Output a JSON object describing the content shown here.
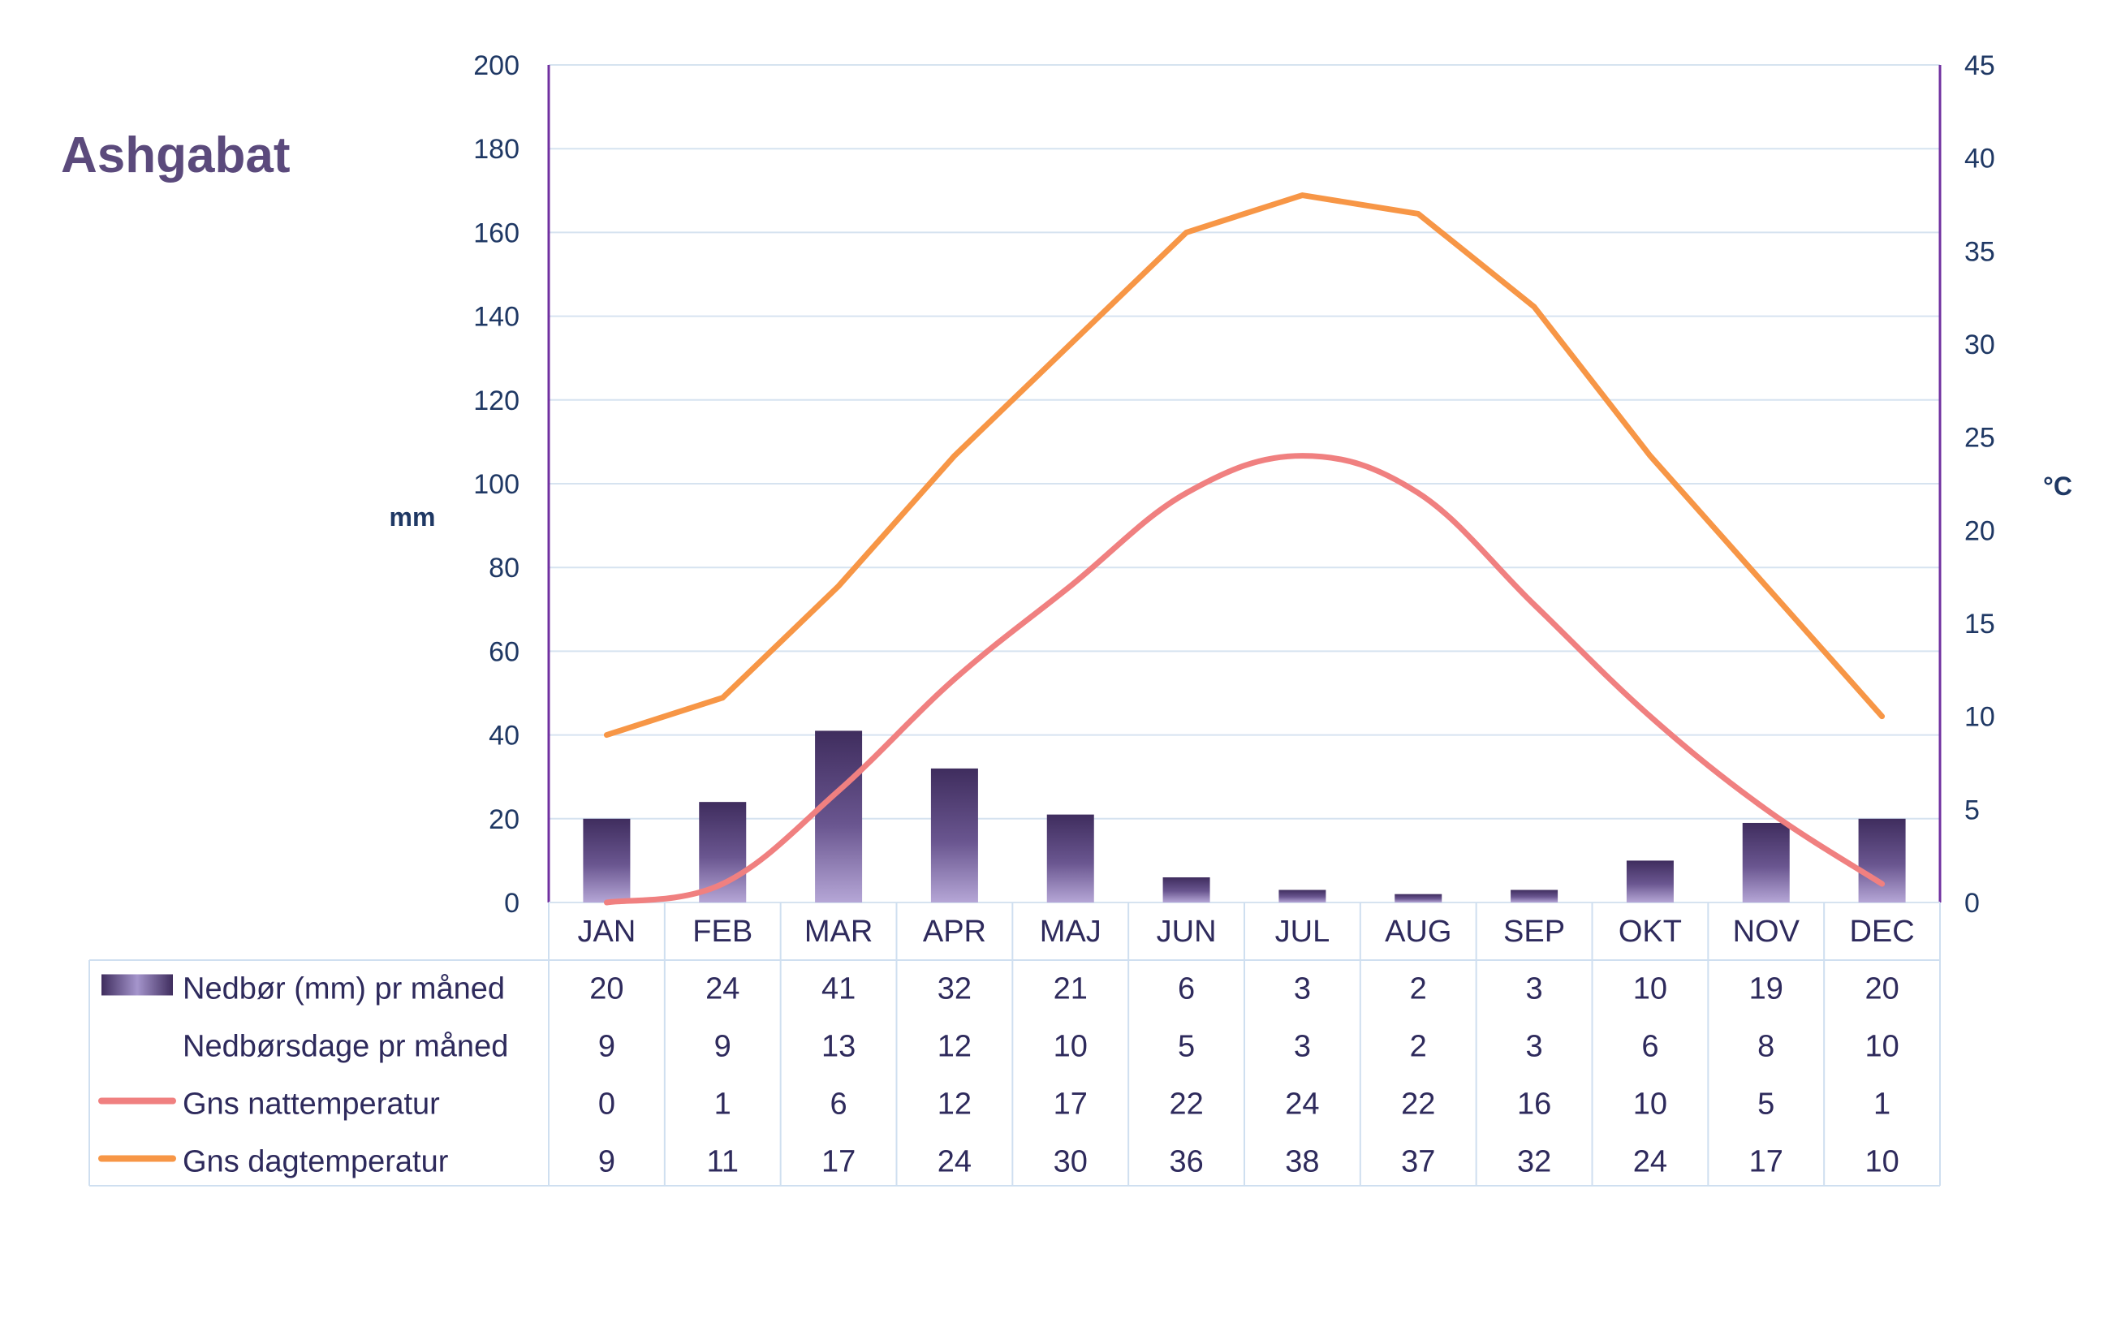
{
  "chart_data": {
    "type": "bar",
    "title": "Ashgabat",
    "categories": [
      "JAN",
      "FEB",
      "MAR",
      "APR",
      "MAJ",
      "JUN",
      "JUL",
      "AUG",
      "SEP",
      "OKT",
      "NOV",
      "DEC"
    ],
    "y_left": {
      "label": "mm",
      "ylim": [
        0,
        200
      ],
      "ticks": [
        "0",
        "20",
        "40",
        "60",
        "80",
        "100",
        "120",
        "140",
        "160",
        "180",
        "200"
      ]
    },
    "y_right": {
      "label": "°C",
      "ylim": [
        0,
        45
      ],
      "ticks": [
        "0",
        "5",
        "10",
        "15",
        "20",
        "25",
        "30",
        "35",
        "40",
        "45"
      ]
    },
    "grid": true,
    "series": [
      {
        "name": "Nedbør (mm) pr måned",
        "type": "bar",
        "axis": "left",
        "color": "#5b4a7c",
        "values": [
          20,
          24,
          41,
          32,
          21,
          6,
          3,
          2,
          3,
          10,
          19,
          20
        ]
      },
      {
        "name": "Nedbørsdage pr måned",
        "type": "table",
        "values": [
          9,
          9,
          13,
          12,
          10,
          5,
          3,
          2,
          3,
          6,
          8,
          10
        ]
      },
      {
        "name": "Gns nattemperatur",
        "type": "line",
        "axis": "right",
        "color": "#f08080",
        "values": [
          0,
          1,
          6,
          12,
          17,
          22,
          24,
          22,
          16,
          10,
          5,
          1
        ]
      },
      {
        "name": "Gns dagtemperatur",
        "type": "line",
        "axis": "right",
        "color": "#f79646",
        "values": [
          9,
          11,
          17,
          24,
          30,
          36,
          38,
          37,
          32,
          24,
          17,
          10
        ]
      }
    ],
    "legend_placement": "bottom-table"
  }
}
